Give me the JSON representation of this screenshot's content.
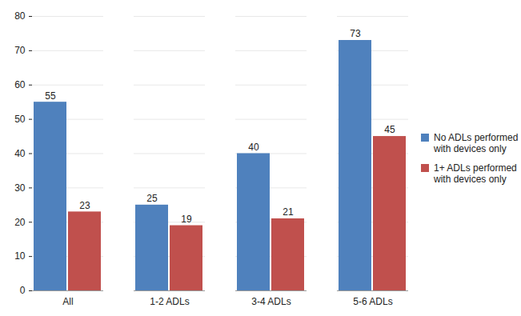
{
  "chart_data": {
    "type": "bar",
    "categories": [
      "All",
      "1-2 ADLs",
      "3-4 ADLs",
      "5-6 ADLs"
    ],
    "series": [
      {
        "name": "No ADLs performed with devices only",
        "color": "#4f81bd",
        "values": [
          55,
          25,
          40,
          73
        ]
      },
      {
        "name": "1+ ADLs performed with devices only",
        "color": "#c0504d",
        "values": [
          23,
          19,
          21,
          45
        ]
      }
    ],
    "ylim": [
      0,
      80
    ],
    "yticks": [
      0,
      10,
      20,
      30,
      40,
      50,
      60,
      70,
      80
    ],
    "grid": true,
    "data_labels": true,
    "legend": "right"
  }
}
